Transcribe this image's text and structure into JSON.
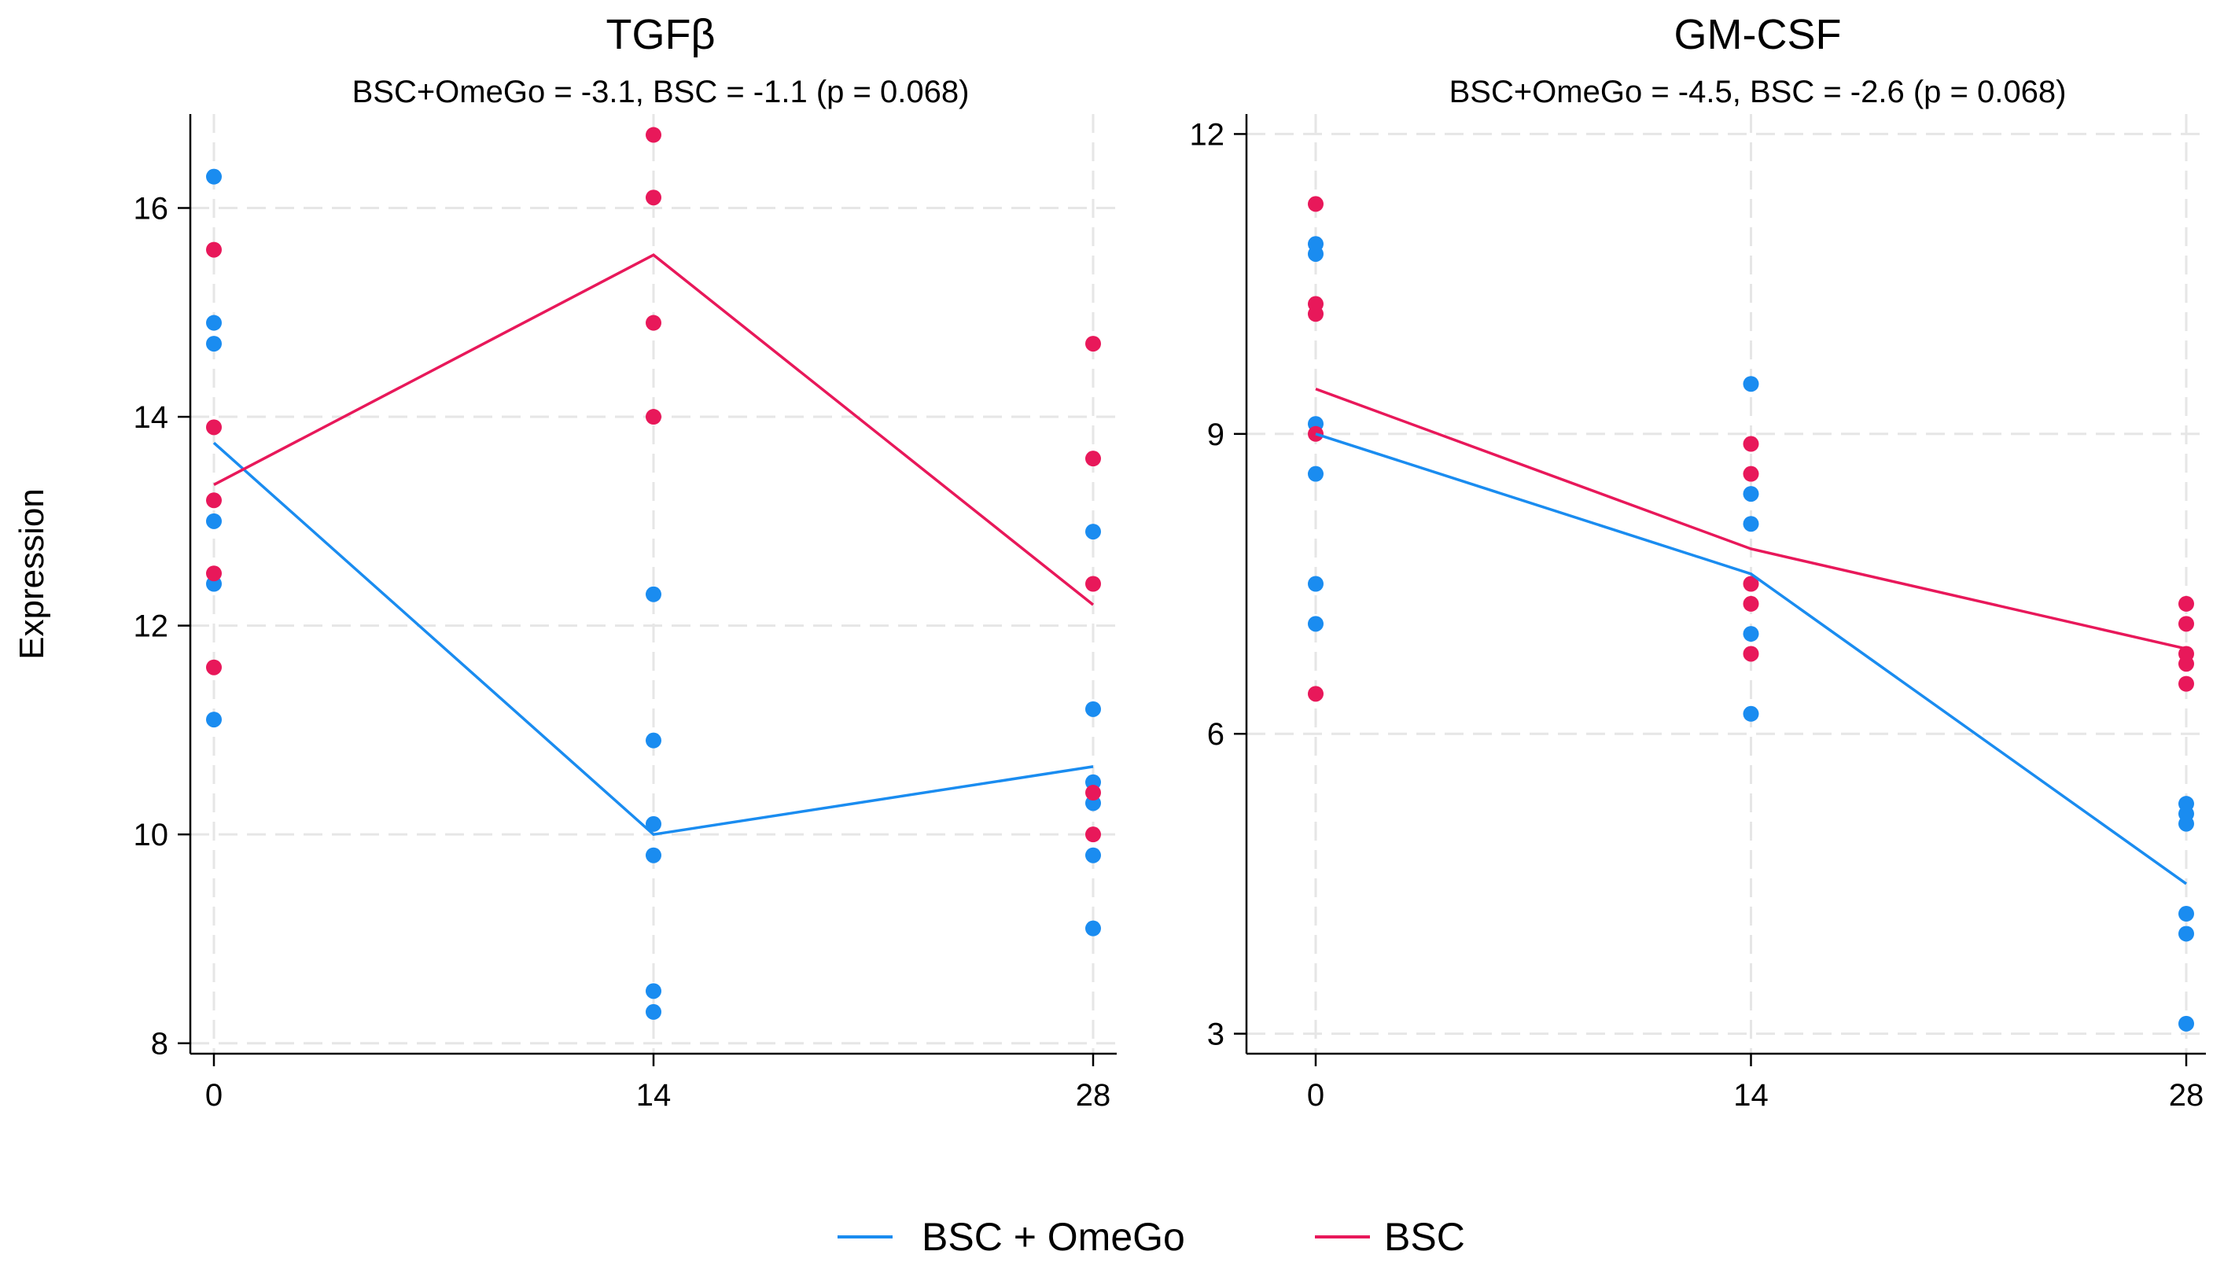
{
  "colors": {
    "bsc_omego": "#1a8cf0",
    "bsc": "#e8185a",
    "grid": "#e6e6e6",
    "axis": "#000000"
  },
  "ylabel": "Expression",
  "legend": {
    "position": "bottom-center",
    "items": [
      "BSC + OmeGo",
      "BSC"
    ]
  },
  "chart_data": [
    {
      "type": "scatter",
      "title": "TGFβ",
      "subtitle": "BSC+OmeGo = -3.1,  BSC = -1.1 (p = 0.068)",
      "xlabel": "",
      "ylabel": "Expression",
      "x_ticks": [
        0,
        14,
        28
      ],
      "y_ticks": [
        8,
        10,
        12,
        14,
        16
      ],
      "xlim": [
        0,
        28
      ],
      "ylim": [
        7.9,
        16.9
      ],
      "grid": true,
      "series": [
        {
          "name": "BSC + OmeGo",
          "points": [
            [
              0,
              16.3
            ],
            [
              0,
              14.9
            ],
            [
              0,
              14.7
            ],
            [
              0,
              13.0
            ],
            [
              0,
              12.4
            ],
            [
              0,
              11.1
            ],
            [
              14,
              12.3
            ],
            [
              14,
              10.9
            ],
            [
              14,
              10.1
            ],
            [
              14,
              9.8
            ],
            [
              14,
              8.5
            ],
            [
              14,
              8.3
            ],
            [
              28,
              12.9
            ],
            [
              28,
              11.2
            ],
            [
              28,
              10.5
            ],
            [
              28,
              10.3
            ],
            [
              28,
              9.8
            ],
            [
              28,
              9.1
            ]
          ],
          "line": [
            [
              0,
              13.75
            ],
            [
              14,
              10.0
            ],
            [
              28,
              10.65
            ]
          ]
        },
        {
          "name": "BSC",
          "points": [
            [
              0,
              15.6
            ],
            [
              0,
              13.9
            ],
            [
              0,
              13.2
            ],
            [
              0,
              12.5
            ],
            [
              0,
              11.6
            ],
            [
              14,
              16.7
            ],
            [
              14,
              16.1
            ],
            [
              14,
              14.9
            ],
            [
              14,
              14.0
            ],
            [
              28,
              14.7
            ],
            [
              28,
              13.6
            ],
            [
              28,
              12.4
            ],
            [
              28,
              10.4
            ],
            [
              28,
              10.0
            ]
          ],
          "line": [
            [
              0,
              13.35
            ],
            [
              14,
              15.55
            ],
            [
              28,
              12.2
            ]
          ]
        }
      ]
    },
    {
      "type": "scatter",
      "title": "GM-CSF",
      "subtitle": "BSC+OmeGo = -4.5,  BSC = -2.6 (p = 0.068)",
      "xlabel": "",
      "ylabel": "",
      "x_ticks": [
        0,
        14,
        28
      ],
      "y_ticks": [
        3,
        6,
        9,
        12
      ],
      "xlim": [
        0,
        28
      ],
      "ylim": [
        2.8,
        12.2
      ],
      "grid": true,
      "series": [
        {
          "name": "BSC + OmeGo",
          "points": [
            [
              0,
              10.9
            ],
            [
              0,
              10.8
            ],
            [
              0,
              9.1
            ],
            [
              0,
              8.6
            ],
            [
              0,
              7.5
            ],
            [
              0,
              7.1
            ],
            [
              14,
              9.5
            ],
            [
              14,
              8.4
            ],
            [
              14,
              8.1
            ],
            [
              14,
              7.0
            ],
            [
              14,
              6.2
            ],
            [
              28,
              5.3
            ],
            [
              28,
              5.2
            ],
            [
              28,
              5.1
            ],
            [
              28,
              4.2
            ],
            [
              28,
              4.0
            ],
            [
              28,
              3.1
            ]
          ],
          "line": [
            [
              0,
              9.0
            ],
            [
              14,
              7.6
            ],
            [
              28,
              4.5
            ]
          ]
        },
        {
          "name": "BSC",
          "points": [
            [
              0,
              11.3
            ],
            [
              0,
              10.3
            ],
            [
              0,
              10.2
            ],
            [
              0,
              9.0
            ],
            [
              0,
              6.4
            ],
            [
              14,
              8.9
            ],
            [
              14,
              8.6
            ],
            [
              14,
              7.5
            ],
            [
              14,
              7.3
            ],
            [
              14,
              6.8
            ],
            [
              28,
              7.3
            ],
            [
              28,
              7.1
            ],
            [
              28,
              6.8
            ],
            [
              28,
              6.7
            ],
            [
              28,
              6.5
            ]
          ],
          "line": [
            [
              0,
              9.45
            ],
            [
              14,
              7.85
            ],
            [
              28,
              6.85
            ]
          ]
        }
      ]
    }
  ]
}
